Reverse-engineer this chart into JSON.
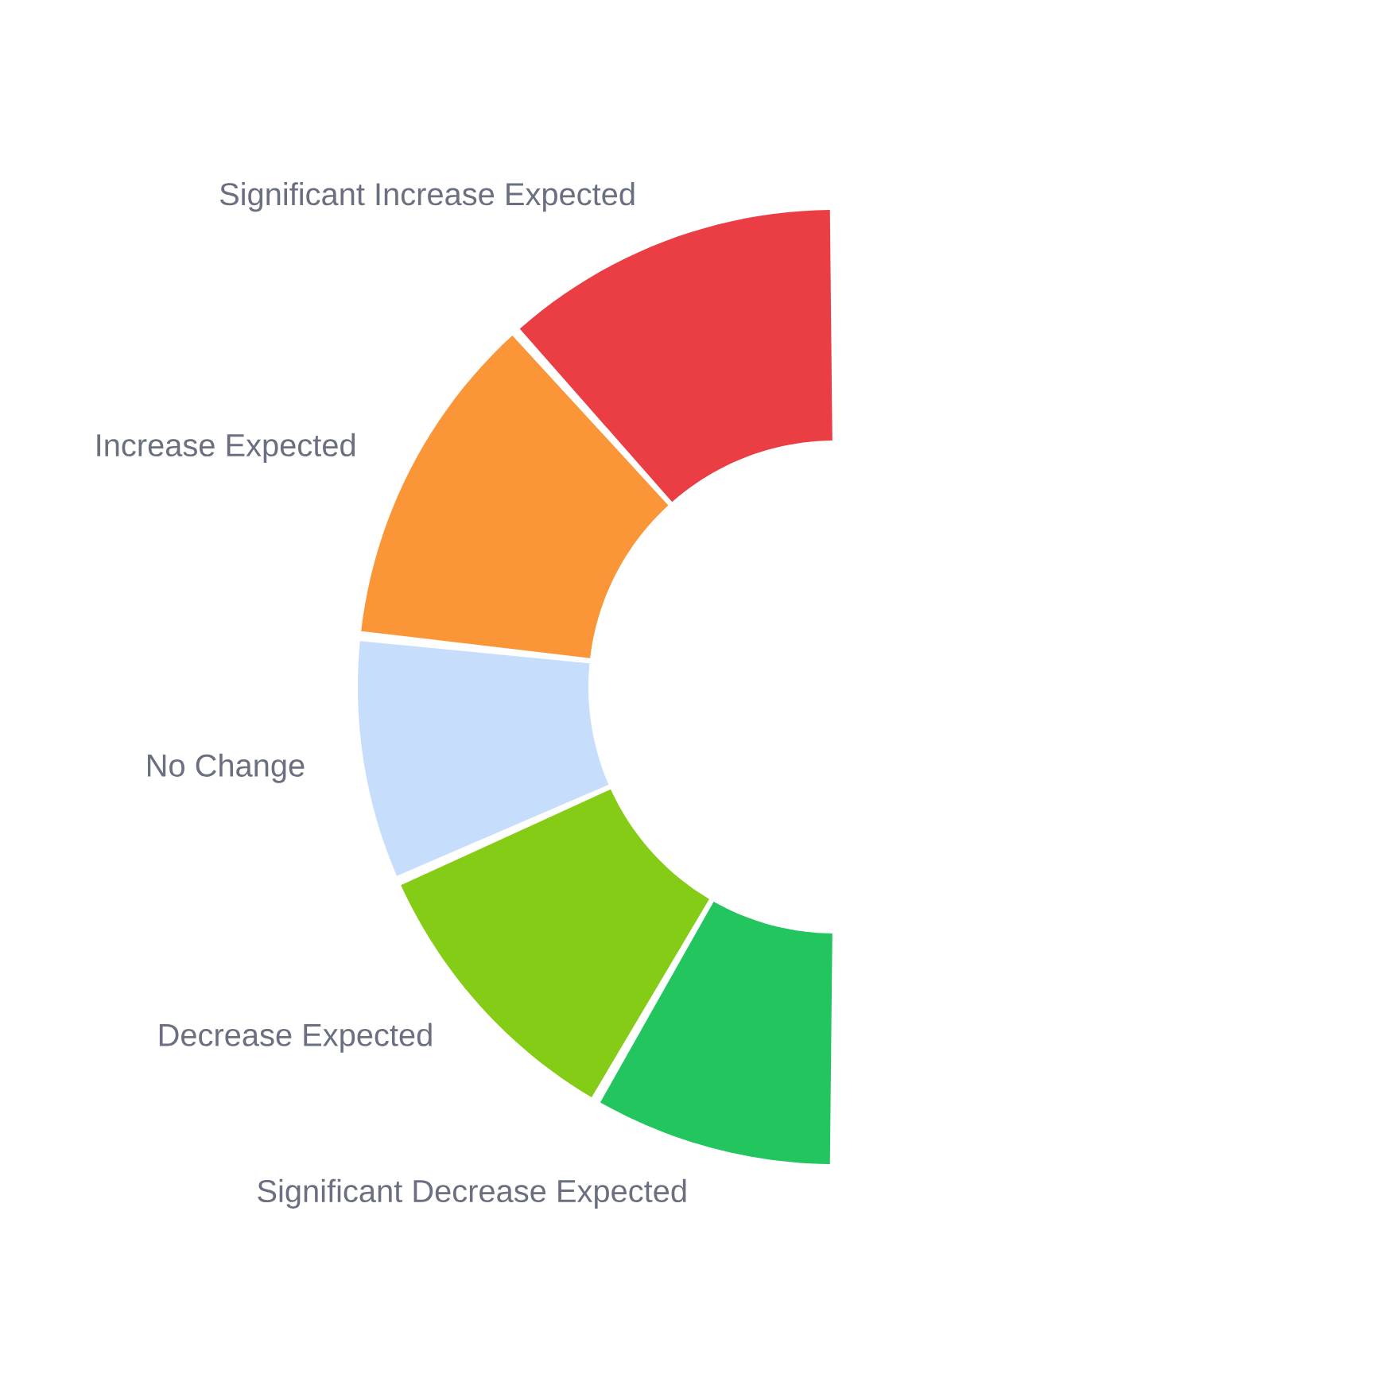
{
  "chart_data": {
    "type": "donut",
    "categories": [
      "Significant Increase Expected",
      "Increase Expected",
      "No Change",
      "Decrease Expected",
      "Significant Decrease Expected"
    ],
    "values": [
      23.3,
      23.3,
      16.7,
      20,
      16.7
    ],
    "colors": [
      "#ea3d44",
      "#fb9638",
      "#c6defb",
      "#84cc16",
      "#22c55e"
    ]
  }
}
